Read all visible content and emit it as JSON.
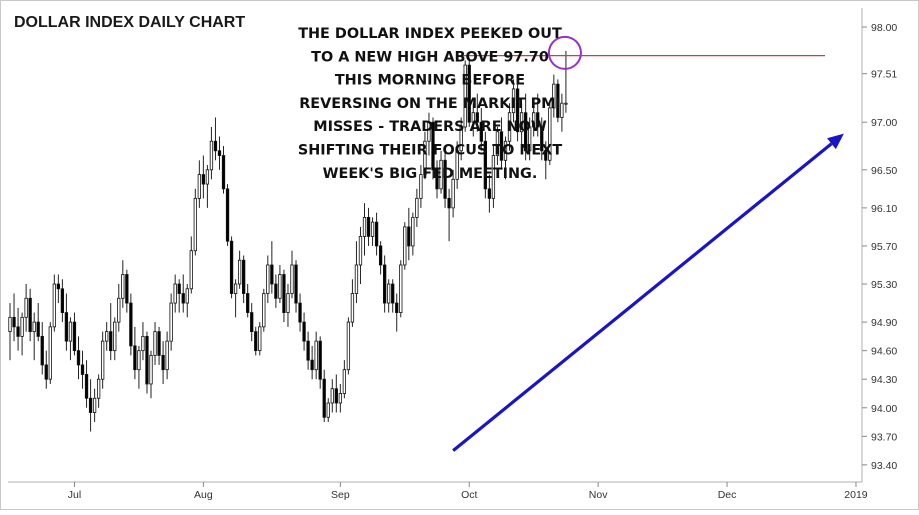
{
  "chart_data": {
    "type": "candlestick",
    "title": "DOLLAR INDEX DAILY CHART",
    "annotation_lines": [
      "THE DOLLAR INDEX PEEKED OUT",
      "TO A NEW HIGH ABOVE 97.70",
      "THIS MORNING BEFORE",
      "REVERSING ON THE MARKIT PMI",
      "MISSES - TRADERS ARE NOW",
      "SHIFTING THEIR FOCUS TO NEXT",
      "WEEK'S BIG FED MEETING."
    ],
    "y_ticks": [
      {
        "value": 98.0,
        "label": "98.00"
      },
      {
        "value": 97.51,
        "label": "97.51"
      },
      {
        "value": 97.0,
        "label": "97.00"
      },
      {
        "value": 96.5,
        "label": "96.50"
      },
      {
        "value": 96.1,
        "label": "96.10"
      },
      {
        "value": 95.7,
        "label": "95.70"
      },
      {
        "value": 95.3,
        "label": "95.30"
      },
      {
        "value": 94.9,
        "label": "94.90"
      },
      {
        "value": 94.6,
        "label": "94.60"
      },
      {
        "value": 94.3,
        "label": "94.30"
      },
      {
        "value": 94.0,
        "label": "94.00"
      },
      {
        "value": 93.7,
        "label": "93.70"
      },
      {
        "value": 93.4,
        "label": "93.40"
      }
    ],
    "x_ticks": [
      {
        "index": 16,
        "label": "Jul"
      },
      {
        "index": 48,
        "label": "Aug"
      },
      {
        "index": 82,
        "label": "Sep"
      },
      {
        "index": 114,
        "label": "Oct"
      },
      {
        "index": 146,
        "label": "Nov"
      },
      {
        "index": 178,
        "label": "Dec"
      },
      {
        "index": 210,
        "label": "2019"
      }
    ],
    "ylim": [
      93.22,
      98.2
    ],
    "x_count": 212,
    "resistance_level": 97.7,
    "trend_start": {
      "index": 110,
      "value": 93.55
    },
    "trend_end": {
      "index": 207,
      "value": 96.88
    },
    "grid": false,
    "colors": {
      "bull": "#ffffff",
      "bear": "#000000",
      "wick": "#222222",
      "resistance": "#c2404a",
      "trend": "#1a14c8",
      "highlight": "#9b30c8"
    },
    "candles": [
      {
        "i": 0,
        "o": 94.8,
        "h": 95.1,
        "l": 94.5,
        "c": 94.95
      },
      {
        "i": 1,
        "o": 94.95,
        "h": 95.2,
        "l": 94.7,
        "c": 94.85
      },
      {
        "i": 2,
        "o": 94.85,
        "h": 95.05,
        "l": 94.6,
        "c": 94.75
      },
      {
        "i": 3,
        "o": 94.75,
        "h": 95.0,
        "l": 94.55,
        "c": 94.95
      },
      {
        "i": 4,
        "o": 94.95,
        "h": 95.3,
        "l": 94.8,
        "c": 95.15
      },
      {
        "i": 5,
        "o": 95.15,
        "h": 95.25,
        "l": 94.7,
        "c": 94.8
      },
      {
        "i": 6,
        "o": 94.8,
        "h": 95.0,
        "l": 94.5,
        "c": 94.9
      },
      {
        "i": 7,
        "o": 94.9,
        "h": 95.1,
        "l": 94.7,
        "c": 94.75
      },
      {
        "i": 8,
        "o": 94.75,
        "h": 94.9,
        "l": 94.35,
        "c": 94.45
      },
      {
        "i": 9,
        "o": 94.45,
        "h": 94.6,
        "l": 94.2,
        "c": 94.3
      },
      {
        "i": 10,
        "o": 94.3,
        "h": 94.9,
        "l": 94.25,
        "c": 94.85
      },
      {
        "i": 11,
        "o": 94.85,
        "h": 95.4,
        "l": 94.8,
        "c": 95.3
      },
      {
        "i": 12,
        "o": 95.3,
        "h": 95.4,
        "l": 95.1,
        "c": 95.25
      },
      {
        "i": 13,
        "o": 95.25,
        "h": 95.35,
        "l": 94.9,
        "c": 95.0
      },
      {
        "i": 14,
        "o": 95.0,
        "h": 95.2,
        "l": 94.6,
        "c": 94.7
      },
      {
        "i": 15,
        "o": 94.7,
        "h": 94.95,
        "l": 94.5,
        "c": 94.9
      },
      {
        "i": 16,
        "o": 94.9,
        "h": 95.0,
        "l": 94.55,
        "c": 94.6
      },
      {
        "i": 17,
        "o": 94.6,
        "h": 94.75,
        "l": 94.3,
        "c": 94.45
      },
      {
        "i": 18,
        "o": 94.45,
        "h": 94.6,
        "l": 94.2,
        "c": 94.35
      },
      {
        "i": 19,
        "o": 94.35,
        "h": 94.5,
        "l": 94.0,
        "c": 94.1
      },
      {
        "i": 20,
        "o": 94.1,
        "h": 94.3,
        "l": 93.75,
        "c": 93.95
      },
      {
        "i": 21,
        "o": 93.95,
        "h": 94.2,
        "l": 93.85,
        "c": 94.1
      },
      {
        "i": 22,
        "o": 94.1,
        "h": 94.35,
        "l": 94.0,
        "c": 94.3
      },
      {
        "i": 23,
        "o": 94.3,
        "h": 94.8,
        "l": 94.2,
        "c": 94.7
      },
      {
        "i": 24,
        "o": 94.7,
        "h": 94.9,
        "l": 94.6,
        "c": 94.8
      },
      {
        "i": 25,
        "o": 94.8,
        "h": 95.1,
        "l": 94.5,
        "c": 94.6
      },
      {
        "i": 26,
        "o": 94.6,
        "h": 94.95,
        "l": 94.5,
        "c": 94.9
      },
      {
        "i": 27,
        "o": 94.9,
        "h": 95.3,
        "l": 94.8,
        "c": 95.15
      },
      {
        "i": 28,
        "o": 95.15,
        "h": 95.55,
        "l": 95.05,
        "c": 95.4
      },
      {
        "i": 29,
        "o": 95.4,
        "h": 95.45,
        "l": 95.0,
        "c": 95.1
      },
      {
        "i": 30,
        "o": 95.1,
        "h": 95.2,
        "l": 94.55,
        "c": 94.65
      },
      {
        "i": 31,
        "o": 94.65,
        "h": 94.85,
        "l": 94.3,
        "c": 94.4
      },
      {
        "i": 32,
        "o": 94.4,
        "h": 94.65,
        "l": 94.2,
        "c": 94.6
      },
      {
        "i": 33,
        "o": 94.6,
        "h": 94.9,
        "l": 94.5,
        "c": 94.75
      },
      {
        "i": 34,
        "o": 94.75,
        "h": 94.8,
        "l": 94.15,
        "c": 94.25
      },
      {
        "i": 35,
        "o": 94.25,
        "h": 94.6,
        "l": 94.1,
        "c": 94.55
      },
      {
        "i": 36,
        "o": 94.55,
        "h": 94.9,
        "l": 94.45,
        "c": 94.8
      },
      {
        "i": 37,
        "o": 94.8,
        "h": 94.85,
        "l": 94.45,
        "c": 94.55
      },
      {
        "i": 38,
        "o": 94.55,
        "h": 94.7,
        "l": 94.25,
        "c": 94.4
      },
      {
        "i": 39,
        "o": 94.4,
        "h": 94.8,
        "l": 94.3,
        "c": 94.7
      },
      {
        "i": 40,
        "o": 94.7,
        "h": 95.2,
        "l": 94.6,
        "c": 95.1
      },
      {
        "i": 41,
        "o": 95.1,
        "h": 95.4,
        "l": 95.0,
        "c": 95.3
      },
      {
        "i": 42,
        "o": 95.3,
        "h": 95.35,
        "l": 95.0,
        "c": 95.2
      },
      {
        "i": 43,
        "o": 95.2,
        "h": 95.4,
        "l": 95.0,
        "c": 95.1
      },
      {
        "i": 44,
        "o": 95.1,
        "h": 95.3,
        "l": 94.95,
        "c": 95.25
      },
      {
        "i": 45,
        "o": 95.25,
        "h": 95.8,
        "l": 95.2,
        "c": 95.65
      },
      {
        "i": 46,
        "o": 95.65,
        "h": 96.3,
        "l": 95.6,
        "c": 96.2
      },
      {
        "i": 47,
        "o": 96.2,
        "h": 96.6,
        "l": 96.1,
        "c": 96.45
      },
      {
        "i": 48,
        "o": 96.45,
        "h": 96.65,
        "l": 96.2,
        "c": 96.35
      },
      {
        "i": 49,
        "o": 96.35,
        "h": 96.55,
        "l": 96.1,
        "c": 96.5
      },
      {
        "i": 50,
        "o": 96.5,
        "h": 96.95,
        "l": 96.4,
        "c": 96.8
      },
      {
        "i": 51,
        "o": 96.8,
        "h": 97.05,
        "l": 96.6,
        "c": 96.7
      },
      {
        "i": 52,
        "o": 96.7,
        "h": 96.85,
        "l": 96.5,
        "c": 96.65
      },
      {
        "i": 53,
        "o": 96.65,
        "h": 96.75,
        "l": 96.25,
        "c": 96.3
      },
      {
        "i": 54,
        "o": 96.3,
        "h": 96.35,
        "l": 95.7,
        "c": 95.75
      },
      {
        "i": 55,
        "o": 95.75,
        "h": 95.8,
        "l": 95.15,
        "c": 95.2
      },
      {
        "i": 56,
        "o": 95.2,
        "h": 95.35,
        "l": 94.95,
        "c": 95.3
      },
      {
        "i": 57,
        "o": 95.3,
        "h": 95.65,
        "l": 95.25,
        "c": 95.55
      },
      {
        "i": 58,
        "o": 95.55,
        "h": 95.6,
        "l": 95.1,
        "c": 95.2
      },
      {
        "i": 59,
        "o": 95.2,
        "h": 95.3,
        "l": 94.95,
        "c": 95.0
      },
      {
        "i": 60,
        "o": 95.0,
        "h": 95.1,
        "l": 94.7,
        "c": 94.8
      },
      {
        "i": 61,
        "o": 94.8,
        "h": 94.85,
        "l": 94.55,
        "c": 94.6
      },
      {
        "i": 62,
        "o": 94.6,
        "h": 94.9,
        "l": 94.55,
        "c": 94.85
      },
      {
        "i": 63,
        "o": 94.85,
        "h": 95.25,
        "l": 94.8,
        "c": 95.2
      },
      {
        "i": 64,
        "o": 95.2,
        "h": 95.6,
        "l": 95.1,
        "c": 95.5
      },
      {
        "i": 65,
        "o": 95.5,
        "h": 95.75,
        "l": 95.2,
        "c": 95.3
      },
      {
        "i": 66,
        "o": 95.3,
        "h": 95.4,
        "l": 95.05,
        "c": 95.15
      },
      {
        "i": 67,
        "o": 95.15,
        "h": 95.5,
        "l": 95.1,
        "c": 95.4
      },
      {
        "i": 68,
        "o": 95.4,
        "h": 95.45,
        "l": 94.9,
        "c": 95.0
      },
      {
        "i": 69,
        "o": 95.0,
        "h": 95.3,
        "l": 94.85,
        "c": 95.2
      },
      {
        "i": 70,
        "o": 95.2,
        "h": 95.65,
        "l": 95.15,
        "c": 95.5
      },
      {
        "i": 71,
        "o": 95.5,
        "h": 95.55,
        "l": 95.0,
        "c": 95.1
      },
      {
        "i": 72,
        "o": 95.1,
        "h": 95.2,
        "l": 94.8,
        "c": 94.9
      },
      {
        "i": 73,
        "o": 94.9,
        "h": 95.0,
        "l": 94.6,
        "c": 94.7
      },
      {
        "i": 74,
        "o": 94.7,
        "h": 94.8,
        "l": 94.4,
        "c": 94.5
      },
      {
        "i": 75,
        "o": 94.5,
        "h": 94.65,
        "l": 94.3,
        "c": 94.4
      },
      {
        "i": 76,
        "o": 94.4,
        "h": 94.8,
        "l": 94.3,
        "c": 94.7
      },
      {
        "i": 77,
        "o": 94.7,
        "h": 94.75,
        "l": 94.2,
        "c": 94.3
      },
      {
        "i": 78,
        "o": 94.3,
        "h": 94.4,
        "l": 93.85,
        "c": 93.9
      },
      {
        "i": 79,
        "o": 93.9,
        "h": 94.1,
        "l": 93.85,
        "c": 94.05
      },
      {
        "i": 80,
        "o": 94.05,
        "h": 94.3,
        "l": 93.95,
        "c": 94.2
      },
      {
        "i": 81,
        "o": 94.2,
        "h": 94.35,
        "l": 93.95,
        "c": 94.05
      },
      {
        "i": 82,
        "o": 94.05,
        "h": 94.25,
        "l": 93.95,
        "c": 94.15
      },
      {
        "i": 83,
        "o": 94.15,
        "h": 94.5,
        "l": 94.1,
        "c": 94.4
      },
      {
        "i": 84,
        "o": 94.4,
        "h": 94.95,
        "l": 94.35,
        "c": 94.9
      },
      {
        "i": 85,
        "o": 94.9,
        "h": 95.35,
        "l": 94.85,
        "c": 95.2
      },
      {
        "i": 86,
        "o": 95.2,
        "h": 95.75,
        "l": 95.1,
        "c": 95.5
      },
      {
        "i": 87,
        "o": 95.5,
        "h": 95.9,
        "l": 95.3,
        "c": 95.8
      },
      {
        "i": 88,
        "o": 95.8,
        "h": 96.15,
        "l": 95.6,
        "c": 96.0
      },
      {
        "i": 89,
        "o": 96.0,
        "h": 96.1,
        "l": 95.7,
        "c": 95.8
      },
      {
        "i": 90,
        "o": 95.8,
        "h": 96.0,
        "l": 95.7,
        "c": 95.95
      },
      {
        "i": 91,
        "o": 95.95,
        "h": 96.05,
        "l": 95.6,
        "c": 95.7
      },
      {
        "i": 92,
        "o": 95.7,
        "h": 95.75,
        "l": 95.4,
        "c": 95.5
      },
      {
        "i": 93,
        "o": 95.5,
        "h": 95.6,
        "l": 95.0,
        "c": 95.1
      },
      {
        "i": 94,
        "o": 95.1,
        "h": 95.35,
        "l": 95.0,
        "c": 95.3
      },
      {
        "i": 95,
        "o": 95.3,
        "h": 95.35,
        "l": 95.0,
        "c": 95.1
      },
      {
        "i": 96,
        "o": 95.1,
        "h": 95.2,
        "l": 94.8,
        "c": 95.0
      },
      {
        "i": 97,
        "o": 95.0,
        "h": 95.55,
        "l": 94.95,
        "c": 95.5
      },
      {
        "i": 98,
        "o": 95.5,
        "h": 95.95,
        "l": 95.45,
        "c": 95.9
      },
      {
        "i": 99,
        "o": 95.9,
        "h": 96.1,
        "l": 95.55,
        "c": 95.7
      },
      {
        "i": 100,
        "o": 95.7,
        "h": 96.05,
        "l": 95.6,
        "c": 96.0
      },
      {
        "i": 101,
        "o": 96.0,
        "h": 96.3,
        "l": 95.9,
        "c": 96.2
      },
      {
        "i": 102,
        "o": 96.2,
        "h": 96.55,
        "l": 96.1,
        "c": 96.45
      },
      {
        "i": 103,
        "o": 96.45,
        "h": 96.9,
        "l": 96.4,
        "c": 96.8
      },
      {
        "i": 104,
        "o": 96.8,
        "h": 97.1,
        "l": 96.65,
        "c": 97.0
      },
      {
        "i": 105,
        "o": 97.0,
        "h": 97.05,
        "l": 96.4,
        "c": 96.5
      },
      {
        "i": 106,
        "o": 96.5,
        "h": 96.6,
        "l": 96.2,
        "c": 96.3
      },
      {
        "i": 107,
        "o": 96.3,
        "h": 96.7,
        "l": 96.25,
        "c": 96.6
      },
      {
        "i": 108,
        "o": 96.6,
        "h": 96.7,
        "l": 96.1,
        "c": 96.2
      },
      {
        "i": 109,
        "o": 96.2,
        "h": 96.3,
        "l": 95.75,
        "c": 96.1
      },
      {
        "i": 110,
        "o": 96.1,
        "h": 96.5,
        "l": 96.0,
        "c": 96.4
      },
      {
        "i": 111,
        "o": 96.4,
        "h": 96.8,
        "l": 96.3,
        "c": 96.7
      },
      {
        "i": 112,
        "o": 96.7,
        "h": 97.05,
        "l": 96.6,
        "c": 96.95
      },
      {
        "i": 113,
        "o": 96.95,
        "h": 97.65,
        "l": 96.9,
        "c": 97.6
      },
      {
        "i": 114,
        "o": 97.6,
        "h": 97.68,
        "l": 96.95,
        "c": 97.0
      },
      {
        "i": 115,
        "o": 97.0,
        "h": 97.2,
        "l": 96.85,
        "c": 97.1
      },
      {
        "i": 116,
        "o": 97.1,
        "h": 97.3,
        "l": 96.9,
        "c": 97.0
      },
      {
        "i": 117,
        "o": 97.0,
        "h": 97.15,
        "l": 96.7,
        "c": 96.8
      },
      {
        "i": 118,
        "o": 96.8,
        "h": 96.9,
        "l": 96.2,
        "c": 96.3
      },
      {
        "i": 119,
        "o": 96.3,
        "h": 96.45,
        "l": 96.05,
        "c": 96.2
      },
      {
        "i": 120,
        "o": 96.2,
        "h": 96.75,
        "l": 96.1,
        "c": 96.65
      },
      {
        "i": 121,
        "o": 96.65,
        "h": 96.95,
        "l": 96.55,
        "c": 96.9
      },
      {
        "i": 122,
        "o": 96.9,
        "h": 97.05,
        "l": 96.5,
        "c": 96.6
      },
      {
        "i": 123,
        "o": 96.6,
        "h": 96.85,
        "l": 96.4,
        "c": 96.8
      },
      {
        "i": 124,
        "o": 96.8,
        "h": 97.2,
        "l": 96.7,
        "c": 97.1
      },
      {
        "i": 125,
        "o": 97.1,
        "h": 97.45,
        "l": 97.0,
        "c": 97.35
      },
      {
        "i": 126,
        "o": 97.35,
        "h": 97.4,
        "l": 96.8,
        "c": 96.9
      },
      {
        "i": 127,
        "o": 96.9,
        "h": 97.2,
        "l": 96.75,
        "c": 97.1
      },
      {
        "i": 128,
        "o": 97.1,
        "h": 97.3,
        "l": 96.6,
        "c": 96.7
      },
      {
        "i": 129,
        "o": 96.7,
        "h": 97.05,
        "l": 96.6,
        "c": 96.95
      },
      {
        "i": 130,
        "o": 96.95,
        "h": 97.2,
        "l": 96.85,
        "c": 97.1
      },
      {
        "i": 131,
        "o": 97.1,
        "h": 97.3,
        "l": 96.85,
        "c": 96.95
      },
      {
        "i": 132,
        "o": 96.95,
        "h": 97.05,
        "l": 96.6,
        "c": 96.7
      },
      {
        "i": 133,
        "o": 96.7,
        "h": 96.8,
        "l": 96.4,
        "c": 96.6
      },
      {
        "i": 134,
        "o": 96.6,
        "h": 97.2,
        "l": 96.55,
        "c": 97.15
      },
      {
        "i": 135,
        "o": 97.15,
        "h": 97.5,
        "l": 97.05,
        "c": 97.4
      },
      {
        "i": 136,
        "o": 97.4,
        "h": 97.45,
        "l": 97.0,
        "c": 97.05
      },
      {
        "i": 137,
        "o": 97.05,
        "h": 97.3,
        "l": 96.9,
        "c": 97.2
      },
      {
        "i": 138,
        "o": 97.2,
        "h": 97.75,
        "l": 97.1,
        "c": 97.2
      }
    ]
  }
}
